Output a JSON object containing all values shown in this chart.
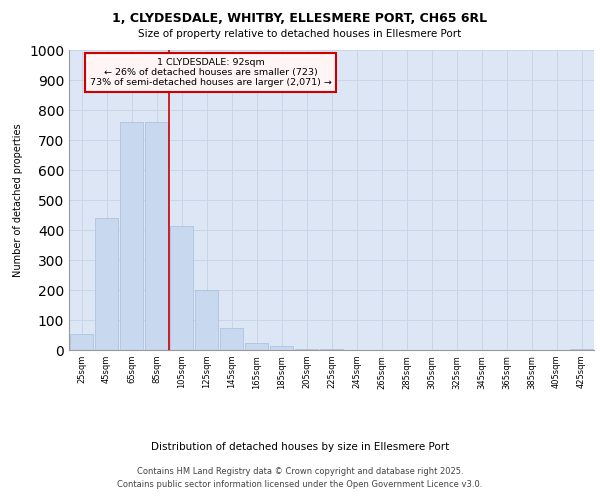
{
  "title_line1": "1, CLYDESDALE, WHITBY, ELLESMERE PORT, CH65 6RL",
  "title_line2": "Size of property relative to detached houses in Ellesmere Port",
  "xlabel": "Distribution of detached houses by size in Ellesmere Port",
  "ylabel": "Number of detached properties",
  "categories": [
    "25sqm",
    "45sqm",
    "65sqm",
    "85sqm",
    "105sqm",
    "125sqm",
    "145sqm",
    "165sqm",
    "185sqm",
    "205sqm",
    "225sqm",
    "245sqm",
    "265sqm",
    "285sqm",
    "305sqm",
    "325sqm",
    "345sqm",
    "365sqm",
    "385sqm",
    "405sqm",
    "425sqm"
  ],
  "bar_values": [
    55,
    440,
    760,
    760,
    415,
    200,
    75,
    25,
    15,
    5,
    2,
    1,
    0,
    0,
    0,
    0,
    0,
    0,
    0,
    0,
    2
  ],
  "bar_color": "#c8d8ef",
  "bar_edge_color": "#a8bedd",
  "grid_color": "#c8d4e8",
  "background_color": "#dce6f5",
  "vline_color": "#cc0000",
  "annotation_text": "1 CLYDESDALE: 92sqm\n← 26% of detached houses are smaller (723)\n73% of semi-detached houses are larger (2,071) →",
  "annotation_box_edge": "#cc0000",
  "ylim": [
    0,
    1000
  ],
  "yticks": [
    0,
    100,
    200,
    300,
    400,
    500,
    600,
    700,
    800,
    900,
    1000
  ],
  "footnote1": "Contains HM Land Registry data © Crown copyright and database right 2025.",
  "footnote2": "Contains public sector information licensed under the Open Government Licence v3.0."
}
